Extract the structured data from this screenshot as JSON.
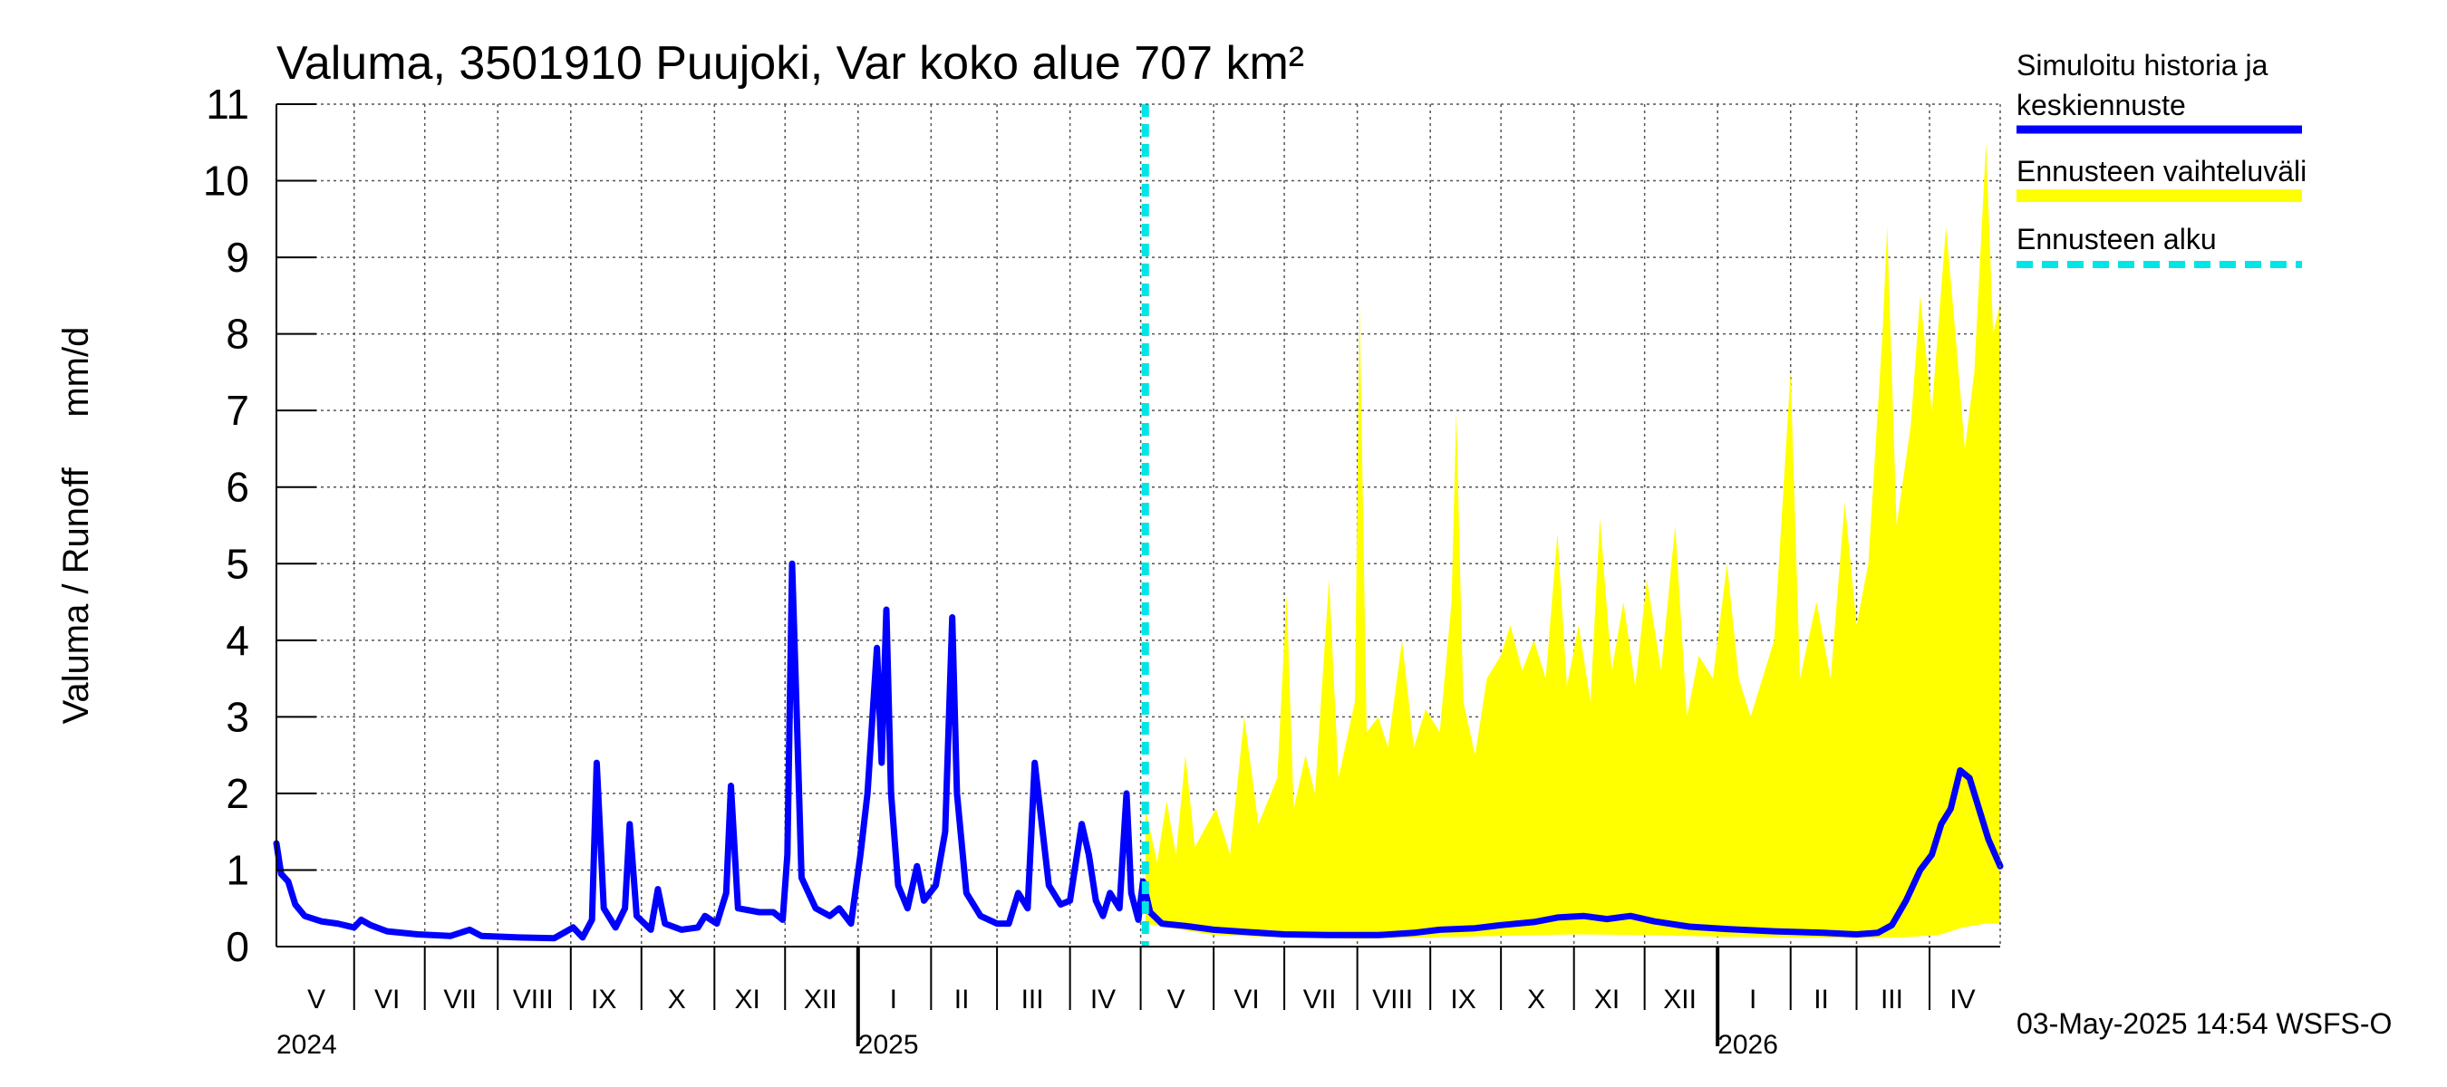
{
  "chart_data": {
    "type": "area",
    "title": "Valuma, 3501910 Puujoki, Var koko alue 707 km²",
    "ylabel": "Valuma / Runoff     mm/d",
    "ylim": [
      0,
      11
    ],
    "yticks": [
      0,
      1,
      2,
      3,
      4,
      5,
      6,
      7,
      8,
      9,
      10,
      11
    ],
    "xlim": [
      "2024-04-29",
      "2026-05-01"
    ],
    "grid": true,
    "legend_position": "right",
    "forecast_start": "2025-05-03",
    "months": [
      {
        "label": "V",
        "mid": "2024-05-16"
      },
      {
        "label": "VI",
        "mid": "2024-06-15"
      },
      {
        "label": "VII",
        "mid": "2024-07-16"
      },
      {
        "label": "VIII",
        "mid": "2024-08-16"
      },
      {
        "label": "IX",
        "mid": "2024-09-15"
      },
      {
        "label": "X",
        "mid": "2024-10-16"
      },
      {
        "label": "XI",
        "mid": "2024-11-15"
      },
      {
        "label": "XII",
        "mid": "2024-12-16"
      },
      {
        "label": "I",
        "mid": "2025-01-16"
      },
      {
        "label": "II",
        "mid": "2025-02-14"
      },
      {
        "label": "III",
        "mid": "2025-03-16"
      },
      {
        "label": "IV",
        "mid": "2025-04-15"
      },
      {
        "label": "V",
        "mid": "2025-05-16"
      },
      {
        "label": "VI",
        "mid": "2025-06-15"
      },
      {
        "label": "VII",
        "mid": "2025-07-16"
      },
      {
        "label": "VIII",
        "mid": "2025-08-16"
      },
      {
        "label": "IX",
        "mid": "2025-09-15"
      },
      {
        "label": "X",
        "mid": "2025-10-16"
      },
      {
        "label": "XI",
        "mid": "2025-11-15"
      },
      {
        "label": "XII",
        "mid": "2025-12-16"
      },
      {
        "label": "I",
        "mid": "2026-01-16"
      },
      {
        "label": "II",
        "mid": "2026-02-14"
      },
      {
        "label": "III",
        "mid": "2026-03-16"
      },
      {
        "label": "IV",
        "mid": "2026-04-15"
      }
    ],
    "month_boundaries": [
      "2024-06-01",
      "2024-07-01",
      "2024-08-01",
      "2024-09-01",
      "2024-10-01",
      "2024-11-01",
      "2024-12-01",
      "2025-01-01",
      "2025-02-01",
      "2025-03-01",
      "2025-04-01",
      "2025-05-01",
      "2025-06-01",
      "2025-07-01",
      "2025-08-01",
      "2025-09-01",
      "2025-10-01",
      "2025-11-01",
      "2025-12-01",
      "2026-01-01",
      "2026-02-01",
      "2026-03-01",
      "2026-04-01",
      "2026-05-01"
    ],
    "years": [
      {
        "label": "2024",
        "date": "2024-05-01"
      },
      {
        "label": "2025",
        "date": "2025-01-01"
      },
      {
        "label": "2026",
        "date": "2026-01-01"
      }
    ],
    "series": [
      {
        "name": "Simuloitu historia ja keskiennuste",
        "color": "#0000ff",
        "points": [
          [
            "2024-04-29",
            1.35
          ],
          [
            "2024-05-01",
            0.95
          ],
          [
            "2024-05-04",
            0.85
          ],
          [
            "2024-05-07",
            0.55
          ],
          [
            "2024-05-11",
            0.4
          ],
          [
            "2024-05-18",
            0.33
          ],
          [
            "2024-05-25",
            0.3
          ],
          [
            "2024-06-01",
            0.25
          ],
          [
            "2024-06-04",
            0.35
          ],
          [
            "2024-06-08",
            0.28
          ],
          [
            "2024-06-15",
            0.2
          ],
          [
            "2024-06-28",
            0.16
          ],
          [
            "2024-07-12",
            0.14
          ],
          [
            "2024-07-20",
            0.22
          ],
          [
            "2024-07-25",
            0.14
          ],
          [
            "2024-08-10",
            0.12
          ],
          [
            "2024-08-25",
            0.11
          ],
          [
            "2024-09-02",
            0.25
          ],
          [
            "2024-09-06",
            0.12
          ],
          [
            "2024-09-10",
            0.35
          ],
          [
            "2024-09-12",
            2.4
          ],
          [
            "2024-09-15",
            0.5
          ],
          [
            "2024-09-20",
            0.25
          ],
          [
            "2024-09-24",
            0.5
          ],
          [
            "2024-09-26",
            1.6
          ],
          [
            "2024-09-29",
            0.4
          ],
          [
            "2024-10-05",
            0.22
          ],
          [
            "2024-10-08",
            0.75
          ],
          [
            "2024-10-11",
            0.3
          ],
          [
            "2024-10-18",
            0.22
          ],
          [
            "2024-10-25",
            0.25
          ],
          [
            "2024-10-28",
            0.4
          ],
          [
            "2024-11-02",
            0.3
          ],
          [
            "2024-11-06",
            0.7
          ],
          [
            "2024-11-08",
            2.1
          ],
          [
            "2024-11-11",
            0.5
          ],
          [
            "2024-11-20",
            0.45
          ],
          [
            "2024-11-26",
            0.45
          ],
          [
            "2024-11-30",
            0.35
          ],
          [
            "2024-12-02",
            1.2
          ],
          [
            "2024-12-04",
            5.0
          ],
          [
            "2024-12-06",
            3.0
          ],
          [
            "2024-12-08",
            0.9
          ],
          [
            "2024-12-14",
            0.5
          ],
          [
            "2024-12-20",
            0.4
          ],
          [
            "2024-12-24",
            0.5
          ],
          [
            "2024-12-29",
            0.3
          ],
          [
            "2025-01-02",
            1.2
          ],
          [
            "2025-01-05",
            2.0
          ],
          [
            "2025-01-09",
            3.9
          ],
          [
            "2025-01-11",
            2.4
          ],
          [
            "2025-01-13",
            4.4
          ],
          [
            "2025-01-15",
            2.0
          ],
          [
            "2025-01-18",
            0.8
          ],
          [
            "2025-01-22",
            0.5
          ],
          [
            "2025-01-26",
            1.05
          ],
          [
            "2025-01-29",
            0.6
          ],
          [
            "2025-02-03",
            0.8
          ],
          [
            "2025-02-07",
            1.5
          ],
          [
            "2025-02-10",
            4.3
          ],
          [
            "2025-02-12",
            2.0
          ],
          [
            "2025-02-16",
            0.7
          ],
          [
            "2025-02-22",
            0.4
          ],
          [
            "2025-03-01",
            0.3
          ],
          [
            "2025-03-06",
            0.3
          ],
          [
            "2025-03-10",
            0.7
          ],
          [
            "2025-03-14",
            0.5
          ],
          [
            "2025-03-17",
            2.4
          ],
          [
            "2025-03-20",
            1.6
          ],
          [
            "2025-03-23",
            0.8
          ],
          [
            "2025-03-28",
            0.55
          ],
          [
            "2025-04-01",
            0.6
          ],
          [
            "2025-04-04",
            1.2
          ],
          [
            "2025-04-06",
            1.6
          ],
          [
            "2025-04-09",
            1.2
          ],
          [
            "2025-04-12",
            0.6
          ],
          [
            "2025-04-15",
            0.4
          ],
          [
            "2025-04-18",
            0.7
          ],
          [
            "2025-04-22",
            0.5
          ],
          [
            "2025-04-25",
            2.0
          ],
          [
            "2025-04-27",
            0.7
          ],
          [
            "2025-04-30",
            0.35
          ],
          [
            "2025-05-02",
            0.85
          ],
          [
            "2025-05-05",
            0.45
          ],
          [
            "2025-05-10",
            0.3
          ],
          [
            "2025-05-20",
            0.27
          ],
          [
            "2025-06-01",
            0.22
          ],
          [
            "2025-06-15",
            0.19
          ],
          [
            "2025-07-01",
            0.16
          ],
          [
            "2025-07-20",
            0.15
          ],
          [
            "2025-08-10",
            0.15
          ],
          [
            "2025-08-25",
            0.18
          ],
          [
            "2025-09-05",
            0.22
          ],
          [
            "2025-09-20",
            0.24
          ],
          [
            "2025-10-01",
            0.28
          ],
          [
            "2025-10-15",
            0.32
          ],
          [
            "2025-10-25",
            0.38
          ],
          [
            "2025-11-05",
            0.4
          ],
          [
            "2025-11-15",
            0.36
          ],
          [
            "2025-11-25",
            0.4
          ],
          [
            "2025-12-05",
            0.33
          ],
          [
            "2025-12-20",
            0.26
          ],
          [
            "2026-01-05",
            0.23
          ],
          [
            "2026-01-25",
            0.2
          ],
          [
            "2026-02-15",
            0.18
          ],
          [
            "2026-03-01",
            0.16
          ],
          [
            "2026-03-10",
            0.18
          ],
          [
            "2026-03-16",
            0.28
          ],
          [
            "2026-03-22",
            0.6
          ],
          [
            "2026-03-28",
            1.0
          ],
          [
            "2026-04-02",
            1.2
          ],
          [
            "2026-04-06",
            1.6
          ],
          [
            "2026-04-10",
            1.8
          ],
          [
            "2026-04-14",
            2.3
          ],
          [
            "2026-04-18",
            2.2
          ],
          [
            "2026-04-22",
            1.8
          ],
          [
            "2026-04-26",
            1.4
          ],
          [
            "2026-05-01",
            1.05
          ]
        ]
      },
      {
        "name": "Ennusteen vaihteluväli",
        "color": "#ffff00",
        "upper": [
          [
            "2025-05-03",
            1.8
          ],
          [
            "2025-05-08",
            1.1
          ],
          [
            "2025-05-12",
            1.9
          ],
          [
            "2025-05-16",
            1.2
          ],
          [
            "2025-05-20",
            2.5
          ],
          [
            "2025-05-24",
            1.3
          ],
          [
            "2025-06-02",
            1.8
          ],
          [
            "2025-06-08",
            1.2
          ],
          [
            "2025-06-14",
            3.0
          ],
          [
            "2025-06-20",
            1.6
          ],
          [
            "2025-06-28",
            2.2
          ],
          [
            "2025-07-02",
            4.6
          ],
          [
            "2025-07-05",
            1.8
          ],
          [
            "2025-07-10",
            2.5
          ],
          [
            "2025-07-14",
            2.0
          ],
          [
            "2025-07-20",
            4.8
          ],
          [
            "2025-07-24",
            2.2
          ],
          [
            "2025-07-31",
            3.2
          ],
          [
            "2025-08-02",
            8.4
          ],
          [
            "2025-08-05",
            2.8
          ],
          [
            "2025-08-10",
            3.0
          ],
          [
            "2025-08-14",
            2.6
          ],
          [
            "2025-08-20",
            4.0
          ],
          [
            "2025-08-25",
            2.6
          ],
          [
            "2025-08-30",
            3.1
          ],
          [
            "2025-09-05",
            2.8
          ],
          [
            "2025-09-10",
            4.5
          ],
          [
            "2025-09-12",
            7.0
          ],
          [
            "2025-09-15",
            3.2
          ],
          [
            "2025-09-20",
            2.5
          ],
          [
            "2025-09-25",
            3.5
          ],
          [
            "2025-10-01",
            3.8
          ],
          [
            "2025-10-05",
            4.2
          ],
          [
            "2025-10-10",
            3.6
          ],
          [
            "2025-10-15",
            4.0
          ],
          [
            "2025-10-20",
            3.5
          ],
          [
            "2025-10-25",
            5.4
          ],
          [
            "2025-10-29",
            3.4
          ],
          [
            "2025-11-03",
            4.2
          ],
          [
            "2025-11-08",
            3.2
          ],
          [
            "2025-11-12",
            5.6
          ],
          [
            "2025-11-17",
            3.6
          ],
          [
            "2025-11-22",
            4.5
          ],
          [
            "2025-11-27",
            3.4
          ],
          [
            "2025-12-02",
            4.8
          ],
          [
            "2025-12-08",
            3.6
          ],
          [
            "2025-12-14",
            5.5
          ],
          [
            "2025-12-19",
            3.0
          ],
          [
            "2025-12-24",
            3.8
          ],
          [
            "2025-12-30",
            3.5
          ],
          [
            "2026-01-05",
            5.0
          ],
          [
            "2026-01-10",
            3.5
          ],
          [
            "2026-01-15",
            3.0
          ],
          [
            "2026-01-25",
            4.0
          ],
          [
            "2026-02-01",
            7.5
          ],
          [
            "2026-02-05",
            3.5
          ],
          [
            "2026-02-12",
            4.5
          ],
          [
            "2026-02-18",
            3.5
          ],
          [
            "2026-02-24",
            5.8
          ],
          [
            "2026-03-01",
            4.2
          ],
          [
            "2026-03-06",
            5.0
          ],
          [
            "2026-03-12",
            8.0
          ],
          [
            "2026-03-14",
            9.4
          ],
          [
            "2026-03-18",
            5.5
          ],
          [
            "2026-03-24",
            6.8
          ],
          [
            "2026-03-28",
            8.5
          ],
          [
            "2026-04-02",
            7.0
          ],
          [
            "2026-04-08",
            9.4
          ],
          [
            "2026-04-12",
            8.0
          ],
          [
            "2026-04-16",
            6.5
          ],
          [
            "2026-04-20",
            7.5
          ],
          [
            "2026-04-25",
            10.5
          ],
          [
            "2026-04-28",
            8.0
          ],
          [
            "2026-05-01",
            8.4
          ]
        ],
        "lower": [
          [
            "2025-05-03",
            0.3
          ],
          [
            "2025-06-01",
            0.15
          ],
          [
            "2025-07-01",
            0.12
          ],
          [
            "2025-08-01",
            0.1
          ],
          [
            "2025-09-01",
            0.12
          ],
          [
            "2025-10-01",
            0.14
          ],
          [
            "2025-11-01",
            0.16
          ],
          [
            "2025-12-01",
            0.15
          ],
          [
            "2026-01-01",
            0.13
          ],
          [
            "2026-02-01",
            0.12
          ],
          [
            "2026-03-01",
            0.11
          ],
          [
            "2026-03-20",
            0.12
          ],
          [
            "2026-04-05",
            0.15
          ],
          [
            "2026-04-15",
            0.25
          ],
          [
            "2026-04-25",
            0.3
          ],
          [
            "2026-05-01",
            0.3
          ]
        ]
      },
      {
        "name": "Ennusteen alku",
        "color": "#00e5e5"
      }
    ]
  },
  "footer": {
    "timestamp": "03-May-2025 14:54 WSFS-O"
  }
}
